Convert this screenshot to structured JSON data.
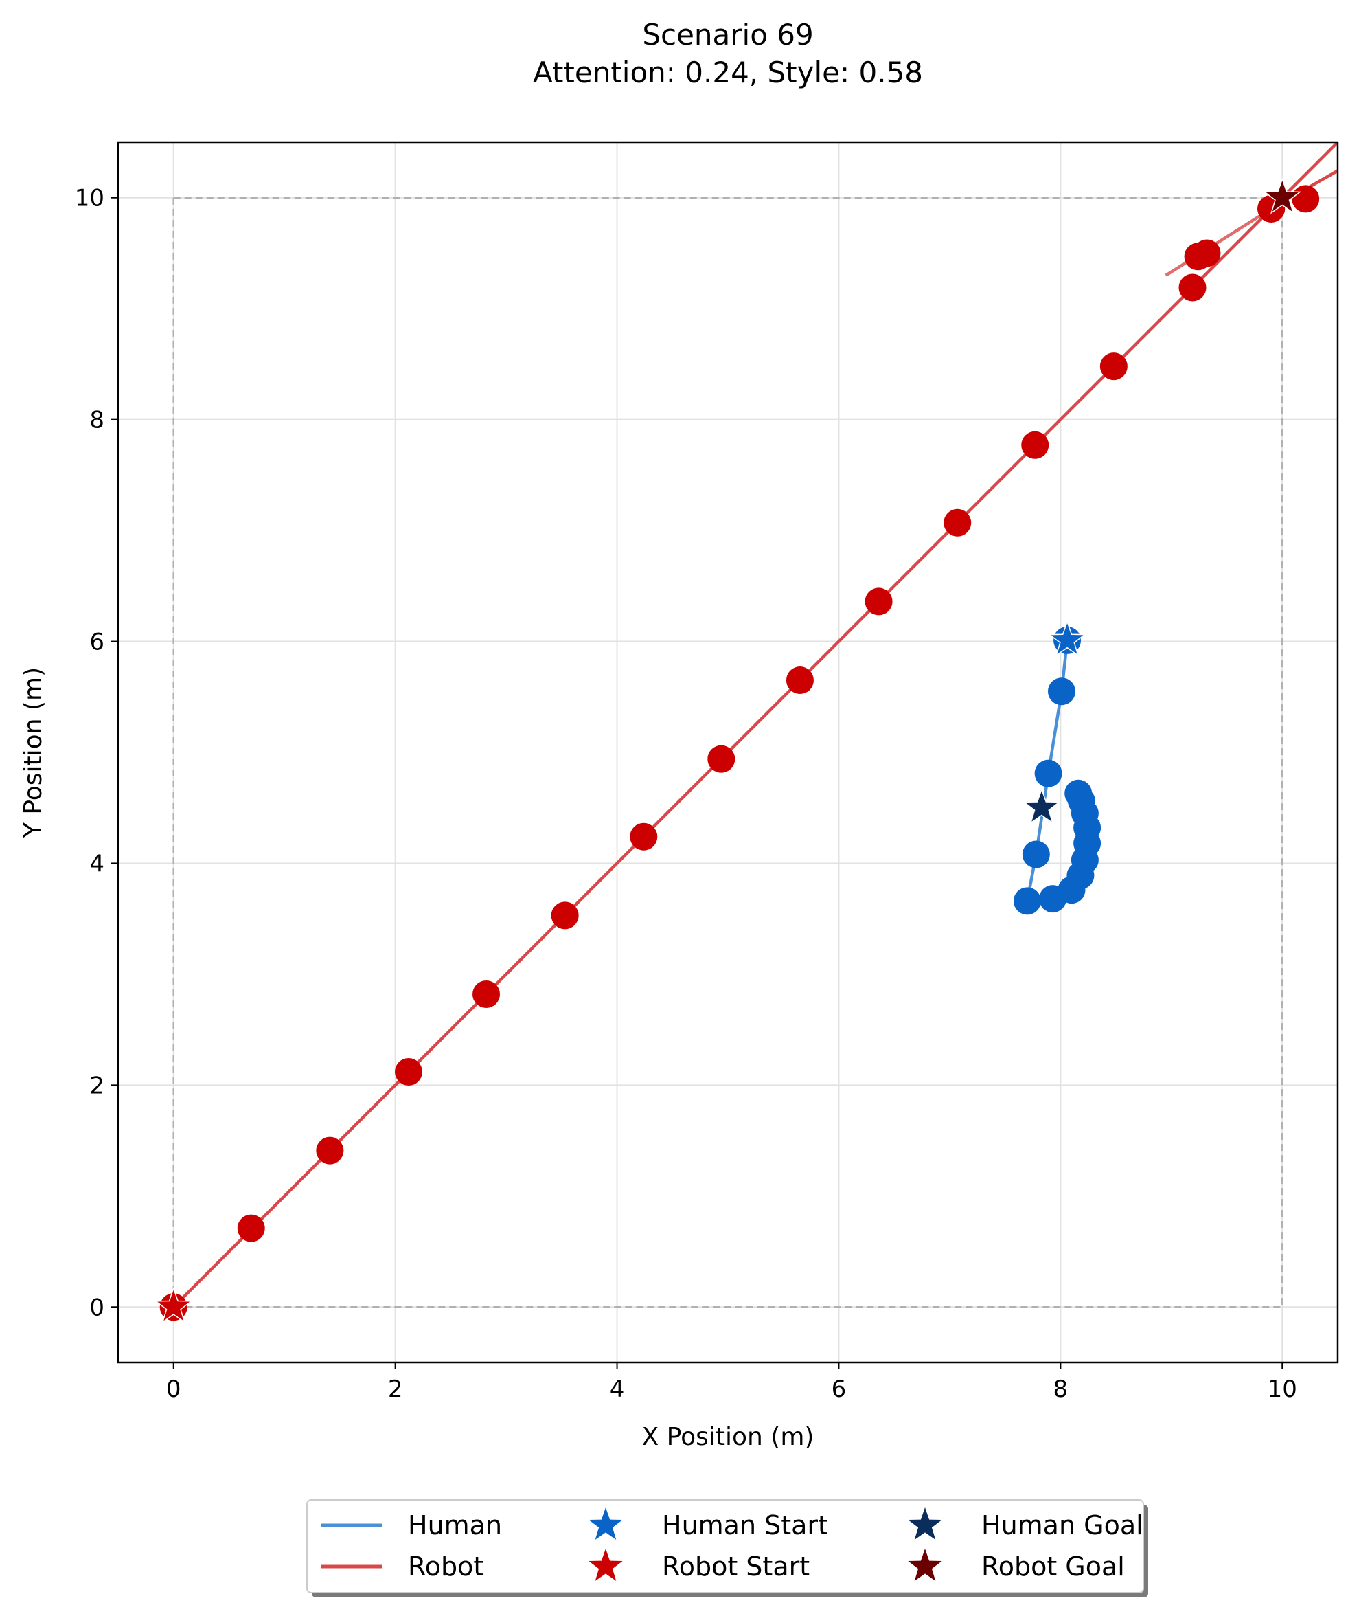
{
  "chart_data": {
    "type": "line",
    "title": "Scenario 69",
    "subtitle": "Attention: 0.24, Style: 0.58",
    "xlabel": "X Position (m)",
    "ylabel": "Y Position (m)",
    "xlim": [
      -0.5,
      10.5
    ],
    "ylim": [
      -0.5,
      10.5
    ],
    "xticks": [
      0,
      2,
      4,
      6,
      8,
      10
    ],
    "yticks": [
      0,
      2,
      4,
      6,
      8,
      10
    ],
    "grid": true,
    "boundary": {
      "x": [
        0,
        10
      ],
      "y": [
        0,
        10
      ],
      "style": "dashed",
      "color": "#b0b0b0"
    },
    "legend_position": "bottom-center",
    "series": [
      {
        "name": "Human",
        "color": "#4a90d9",
        "marker_color": "#0a64c8",
        "points": [
          [
            8.06,
            6.01
          ],
          [
            8.01,
            5.55
          ],
          [
            7.89,
            4.81
          ],
          [
            7.78,
            4.08
          ],
          [
            7.7,
            3.66
          ],
          [
            7.93,
            3.68
          ],
          [
            8.1,
            3.76
          ],
          [
            8.18,
            3.89
          ],
          [
            8.22,
            4.03
          ],
          [
            8.24,
            4.18
          ],
          [
            8.24,
            4.32
          ],
          [
            8.22,
            4.45
          ],
          [
            8.19,
            4.56
          ],
          [
            8.16,
            4.63
          ]
        ]
      },
      {
        "name": "Robot",
        "color": "#d94848",
        "marker_color": "#cc0000",
        "points": [
          [
            0.0,
            0.0
          ],
          [
            0.7,
            0.71
          ],
          [
            1.41,
            1.41
          ],
          [
            2.12,
            2.12
          ],
          [
            2.82,
            2.82
          ],
          [
            3.53,
            3.53
          ],
          [
            4.24,
            4.24
          ],
          [
            4.94,
            4.94
          ],
          [
            5.65,
            5.65
          ],
          [
            6.36,
            6.36
          ],
          [
            7.07,
            7.07
          ],
          [
            7.77,
            7.77
          ],
          [
            8.48,
            8.48
          ],
          [
            9.19,
            9.19
          ],
          [
            9.9,
            9.9
          ],
          [
            10.21,
            9.99
          ],
          [
            9.32,
            9.5
          ],
          [
            9.24,
            9.47
          ],
          [
            9.9,
            9.9
          ]
        ]
      }
    ],
    "markers": [
      {
        "name": "Human Start",
        "x": 8.06,
        "y": 6.01,
        "color": "#0a64c8",
        "shape": "star"
      },
      {
        "name": "Robot Start",
        "x": 0.0,
        "y": 0.0,
        "color": "#cc0000",
        "shape": "star"
      },
      {
        "name": "Human Goal",
        "x": 7.83,
        "y": 4.5,
        "color": "#0a2d5c",
        "shape": "star"
      },
      {
        "name": "Robot Goal",
        "x": 10.0,
        "y": 10.0,
        "color": "#6b0000",
        "shape": "star"
      }
    ],
    "legend": [
      {
        "label": "Human",
        "kind": "line",
        "color": "#4a90d9"
      },
      {
        "label": "Robot",
        "kind": "line",
        "color": "#d94848"
      },
      {
        "label": "Human Start",
        "kind": "star",
        "color": "#0a64c8"
      },
      {
        "label": "Robot Start",
        "kind": "star",
        "color": "#cc0000"
      },
      {
        "label": "Human Goal",
        "kind": "star",
        "color": "#0a2d5c"
      },
      {
        "label": "Robot Goal",
        "kind": "star",
        "color": "#6b0000"
      }
    ]
  }
}
